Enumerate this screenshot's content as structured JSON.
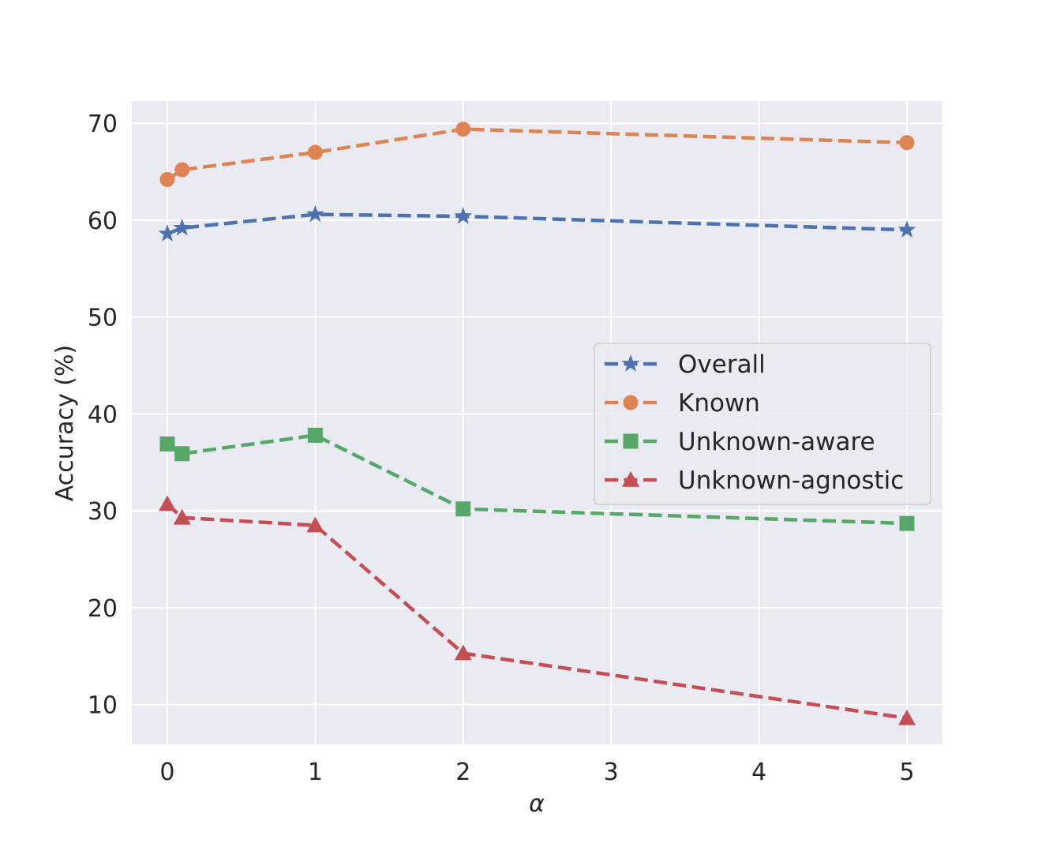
{
  "chart_data": {
    "type": "line",
    "title": "",
    "xlabel": "α",
    "ylabel": "Accuracy (%)",
    "xlim": [
      -0.24,
      5.24
    ],
    "ylim": [
      5.9,
      72.3
    ],
    "xticks": [
      0,
      1,
      2,
      3,
      4,
      5
    ],
    "xtick_labels": [
      "0",
      "1",
      "2",
      "3",
      "4",
      "5"
    ],
    "yticks": [
      10,
      20,
      30,
      40,
      50,
      60,
      70
    ],
    "ytick_labels": [
      "10",
      "20",
      "30",
      "40",
      "50",
      "60",
      "70"
    ],
    "grid": true,
    "legend_position": "center-right",
    "x": [
      0,
      0.1,
      1,
      2,
      5
    ],
    "series": [
      {
        "name": "Overall",
        "color": "#4c72b0",
        "marker": "star",
        "values": [
          58.6,
          59.2,
          60.6,
          60.4,
          59.0
        ]
      },
      {
        "name": "Known",
        "color": "#dd8452",
        "marker": "circle",
        "values": [
          64.2,
          65.2,
          67.0,
          69.4,
          68.0
        ]
      },
      {
        "name": "Unknown-aware",
        "color": "#55a868",
        "marker": "square",
        "values": [
          36.9,
          35.9,
          37.8,
          30.2,
          28.7
        ]
      },
      {
        "name": "Unknown-agnostic",
        "color": "#c44e52",
        "marker": "triangle",
        "values": [
          30.7,
          29.3,
          28.5,
          15.3,
          8.6
        ]
      }
    ]
  }
}
